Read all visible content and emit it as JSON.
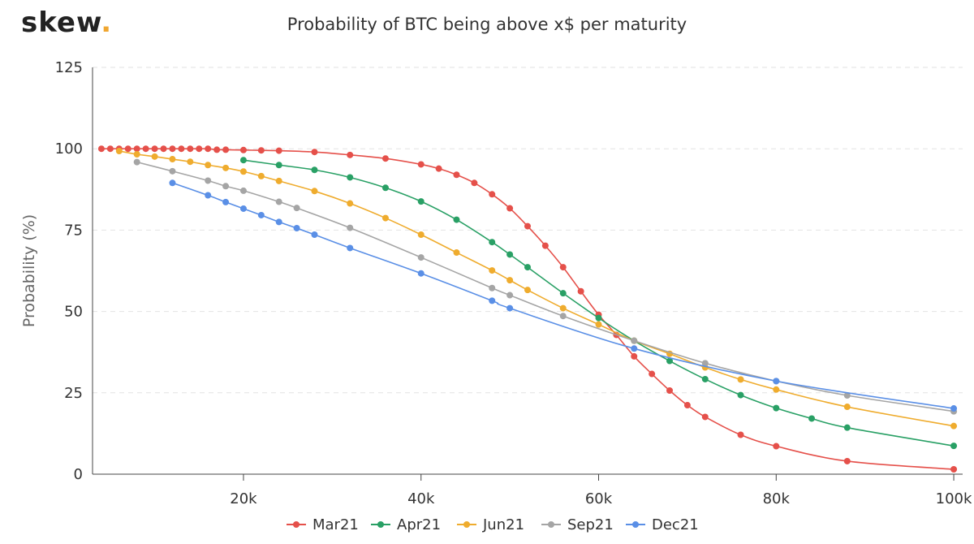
{
  "brand": {
    "name": "skew",
    "dot": "."
  },
  "chart_data": {
    "type": "line",
    "title": "Probability of BTC being above x$ per maturity",
    "xlabel": "",
    "ylabel": "Probability (%)",
    "xlim": [
      3000,
      101000
    ],
    "ylim": [
      0,
      125
    ],
    "x_ticks": [
      20000,
      40000,
      60000,
      80000,
      100000
    ],
    "x_tick_labels": [
      "20k",
      "40k",
      "60k",
      "80k",
      "100k"
    ],
    "y_ticks": [
      0,
      25,
      50,
      75,
      100,
      125
    ],
    "y_tick_labels": [
      "0",
      "25",
      "50",
      "75",
      "100",
      "125"
    ],
    "grid": "horizontal dashed",
    "legend_position": "bottom-center",
    "series": [
      {
        "name": "Mar21",
        "color": "#e5504a",
        "points": [
          [
            4000,
            100
          ],
          [
            5000,
            100
          ],
          [
            6000,
            100
          ],
          [
            7000,
            100
          ],
          [
            8000,
            100
          ],
          [
            9000,
            100
          ],
          [
            10000,
            100
          ],
          [
            11000,
            100
          ],
          [
            12000,
            100
          ],
          [
            13000,
            100
          ],
          [
            14000,
            100
          ],
          [
            15000,
            100
          ],
          [
            16000,
            100
          ],
          [
            17000,
            99.7
          ],
          [
            18000,
            99.7
          ],
          [
            20000,
            99.6
          ],
          [
            22000,
            99.5
          ],
          [
            24000,
            99.4
          ],
          [
            28000,
            99
          ],
          [
            32000,
            98.1
          ],
          [
            36000,
            97
          ],
          [
            40000,
            95.2
          ],
          [
            42000,
            93.9
          ],
          [
            44000,
            92
          ],
          [
            46000,
            89.5
          ],
          [
            48000,
            86
          ],
          [
            50000,
            81.7
          ],
          [
            52000,
            76.2
          ],
          [
            54000,
            70.2
          ],
          [
            56000,
            63.6
          ],
          [
            58000,
            56.2
          ],
          [
            60000,
            49
          ],
          [
            62000,
            42.8
          ],
          [
            64000,
            36.2
          ],
          [
            66000,
            30.8
          ],
          [
            68000,
            25.7
          ],
          [
            70000,
            21.2
          ],
          [
            72000,
            17.6
          ],
          [
            76000,
            12.1
          ],
          [
            80000,
            8.6
          ],
          [
            88000,
            4
          ],
          [
            100000,
            1.5
          ]
        ]
      },
      {
        "name": "Apr21",
        "color": "#29a065",
        "points": [
          [
            20000,
            96.5
          ],
          [
            24000,
            95
          ],
          [
            28000,
            93.5
          ],
          [
            32000,
            91.2
          ],
          [
            36000,
            88
          ],
          [
            40000,
            83.8
          ],
          [
            44000,
            78.2
          ],
          [
            48000,
            71.3
          ],
          [
            50000,
            67.5
          ],
          [
            52000,
            63.6
          ],
          [
            56000,
            55.6
          ],
          [
            60000,
            48
          ],
          [
            64000,
            41
          ],
          [
            68000,
            34.8
          ],
          [
            72000,
            29.2
          ],
          [
            76000,
            24.3
          ],
          [
            80000,
            20.3
          ],
          [
            84000,
            17.1
          ],
          [
            88000,
            14.3
          ],
          [
            100000,
            8.7
          ]
        ]
      },
      {
        "name": "Jun21",
        "color": "#efac2e",
        "points": [
          [
            6000,
            99.3
          ],
          [
            8000,
            98.3
          ],
          [
            10000,
            97.6
          ],
          [
            12000,
            96.8
          ],
          [
            14000,
            96
          ],
          [
            16000,
            95
          ],
          [
            18000,
            94.1
          ],
          [
            20000,
            93
          ],
          [
            22000,
            91.6
          ],
          [
            24000,
            90.1
          ],
          [
            28000,
            87
          ],
          [
            32000,
            83.2
          ],
          [
            36000,
            78.7
          ],
          [
            40000,
            73.6
          ],
          [
            44000,
            68.1
          ],
          [
            48000,
            62.6
          ],
          [
            50000,
            59.6
          ],
          [
            52000,
            56.6
          ],
          [
            56000,
            51
          ],
          [
            60000,
            46
          ],
          [
            64000,
            41
          ],
          [
            68000,
            37
          ],
          [
            72000,
            32.8
          ],
          [
            76000,
            29.1
          ],
          [
            80000,
            26
          ],
          [
            88000,
            20.7
          ],
          [
            100000,
            14.8
          ]
        ]
      },
      {
        "name": "Sep21",
        "color": "#a5a5a5",
        "points": [
          [
            8000,
            95.9
          ],
          [
            12000,
            93.1
          ],
          [
            16000,
            90.2
          ],
          [
            18000,
            88.5
          ],
          [
            20000,
            87.1
          ],
          [
            24000,
            83.7
          ],
          [
            26000,
            81.8
          ],
          [
            32000,
            75.7
          ],
          [
            40000,
            66.6
          ],
          [
            48000,
            57.2
          ],
          [
            50000,
            55
          ],
          [
            56000,
            48.6
          ],
          [
            64000,
            41
          ],
          [
            72000,
            34.1
          ],
          [
            80000,
            28.6
          ],
          [
            88000,
            24.2
          ],
          [
            100000,
            19.3
          ]
        ]
      },
      {
        "name": "Dec21",
        "color": "#5a8fe6",
        "points": [
          [
            12000,
            89.5
          ],
          [
            16000,
            85.7
          ],
          [
            18000,
            83.6
          ],
          [
            20000,
            81.6
          ],
          [
            22000,
            79.6
          ],
          [
            24000,
            77.5
          ],
          [
            26000,
            75.6
          ],
          [
            28000,
            73.6
          ],
          [
            32000,
            69.5
          ],
          [
            40000,
            61.7
          ],
          [
            48000,
            53.3
          ],
          [
            50000,
            51
          ],
          [
            64000,
            38.6
          ],
          [
            80000,
            28.6
          ],
          [
            100000,
            20.2
          ]
        ]
      }
    ]
  }
}
